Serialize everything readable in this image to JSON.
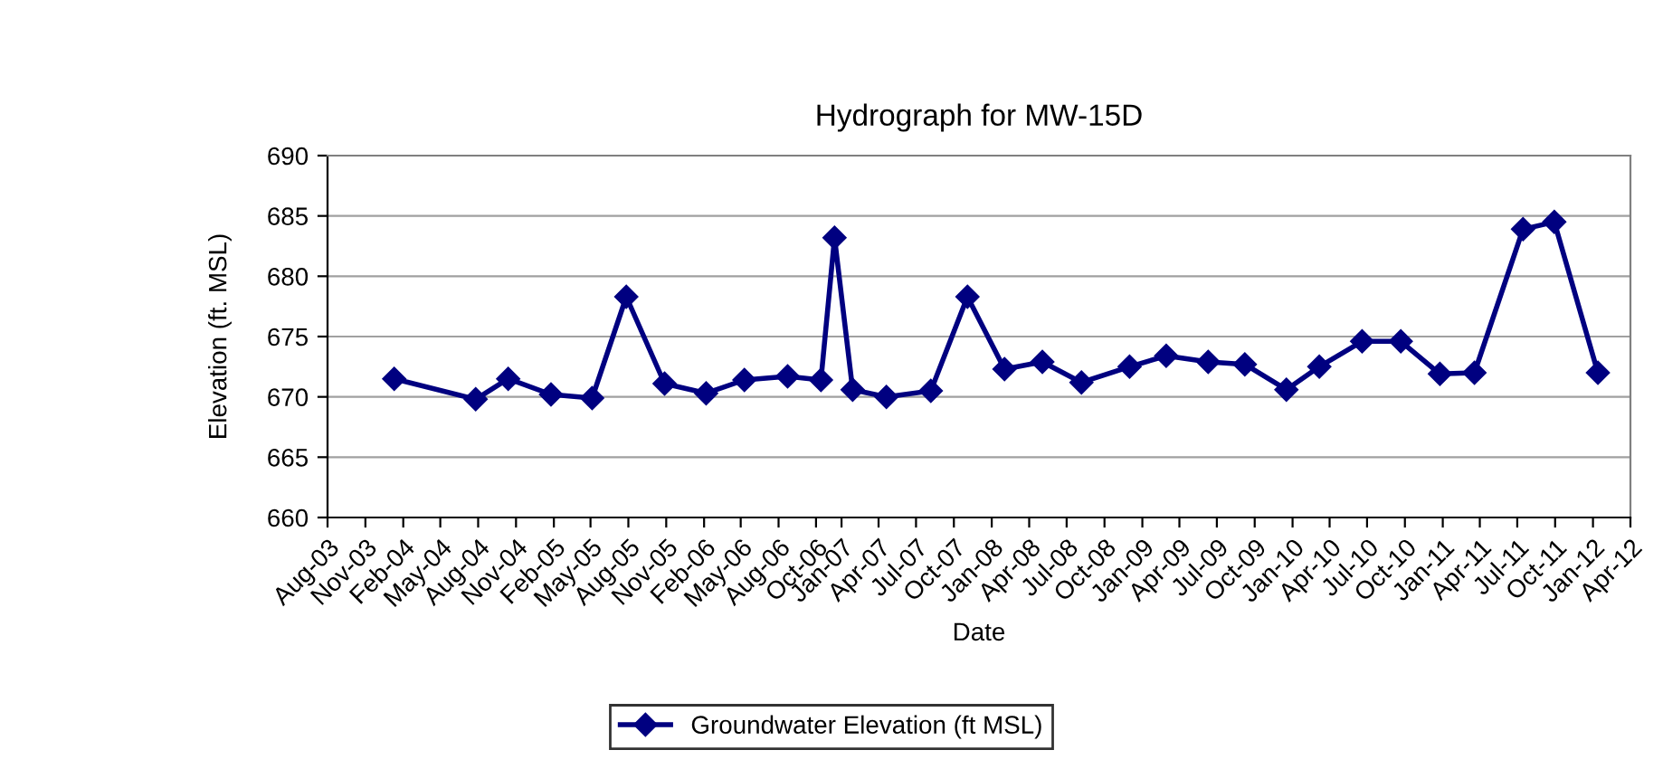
{
  "chart_data": {
    "type": "line",
    "title": "Hydrograph for MW-15D",
    "xlabel": "Date",
    "ylabel": "Elevation (ft. MSL)",
    "x": [
      "2004-01-10",
      "2004-07-26",
      "2004-10-13",
      "2005-01-25",
      "2005-05-05",
      "2005-07-27",
      "2005-10-28",
      "2006-02-06",
      "2006-05-10",
      "2006-08-23",
      "2006-11-12",
      "2006-12-15",
      "2007-01-28",
      "2007-04-20",
      "2007-08-06",
      "2007-11-03",
      "2008-02-01",
      "2008-05-03",
      "2008-08-06",
      "2008-12-01",
      "2009-02-28",
      "2009-06-10",
      "2009-09-07",
      "2009-12-17",
      "2010-03-07",
      "2010-06-19",
      "2010-09-21",
      "2010-12-25",
      "2011-03-19",
      "2011-07-15",
      "2011-09-29",
      "2012-01-13"
    ],
    "series": [
      {
        "name": "Groundwater Elevation (ft MSL)",
        "color": "#000080",
        "values": [
          671.5,
          669.8,
          671.5,
          670.2,
          669.9,
          678.3,
          671.1,
          670.3,
          671.4,
          671.7,
          671.4,
          683.2,
          670.6,
          670.0,
          670.5,
          678.3,
          672.3,
          672.9,
          671.2,
          672.5,
          673.4,
          672.9,
          672.7,
          670.6,
          672.5,
          674.6,
          674.6,
          671.9,
          672.0,
          683.9,
          684.5,
          672.0
        ]
      }
    ],
    "xlim": [
      "2003-08-01",
      "2012-04-01"
    ],
    "xticks": [
      {
        "value": "2003-08-01",
        "label": "Aug-03"
      },
      {
        "value": "2003-11-01",
        "label": "Nov-03"
      },
      {
        "value": "2004-02-01",
        "label": "Feb-04"
      },
      {
        "value": "2004-05-01",
        "label": "May-04"
      },
      {
        "value": "2004-08-01",
        "label": "Aug-04"
      },
      {
        "value": "2004-11-01",
        "label": "Nov-04"
      },
      {
        "value": "2005-02-01",
        "label": "Feb-05"
      },
      {
        "value": "2005-05-01",
        "label": "May-05"
      },
      {
        "value": "2005-08-01",
        "label": "Aug-05"
      },
      {
        "value": "2005-11-01",
        "label": "Nov-05"
      },
      {
        "value": "2006-02-01",
        "label": "Feb-06"
      },
      {
        "value": "2006-05-01",
        "label": "May-06"
      },
      {
        "value": "2006-08-01",
        "label": "Aug-06"
      },
      {
        "value": "2006-10-31",
        "label": "Oct-06"
      },
      {
        "value": "2007-01-01",
        "label": "Jan-07"
      },
      {
        "value": "2007-04-01",
        "label": "Apr-07"
      },
      {
        "value": "2007-07-01",
        "label": "Jul-07"
      },
      {
        "value": "2007-10-01",
        "label": "Oct-07"
      },
      {
        "value": "2008-01-01",
        "label": "Jan-08"
      },
      {
        "value": "2008-04-01",
        "label": "Apr-08"
      },
      {
        "value": "2008-07-01",
        "label": "Jul-08"
      },
      {
        "value": "2008-10-01",
        "label": "Oct-08"
      },
      {
        "value": "2009-01-01",
        "label": "Jan-09"
      },
      {
        "value": "2009-04-01",
        "label": "Apr-09"
      },
      {
        "value": "2009-07-01",
        "label": "Jul-09"
      },
      {
        "value": "2009-10-01",
        "label": "Oct-09"
      },
      {
        "value": "2010-01-01",
        "label": "Jan-10"
      },
      {
        "value": "2010-04-01",
        "label": "Apr-10"
      },
      {
        "value": "2010-07-01",
        "label": "Jul-10"
      },
      {
        "value": "2010-10-01",
        "label": "Oct-10"
      },
      {
        "value": "2011-01-01",
        "label": "Jan-11"
      },
      {
        "value": "2011-04-01",
        "label": "Apr-11"
      },
      {
        "value": "2011-07-01",
        "label": "Jul-11"
      },
      {
        "value": "2011-10-01",
        "label": "Oct-11"
      },
      {
        "value": "2012-01-01",
        "label": "Jan-12"
      },
      {
        "value": "2012-04-01",
        "label": "Apr-12"
      }
    ],
    "ylim": [
      660,
      690
    ],
    "yticks": [
      660,
      665,
      670,
      675,
      680,
      685,
      690
    ],
    "grid": "y",
    "legend": "bottom",
    "marker": "diamond",
    "line_style": "solid"
  }
}
